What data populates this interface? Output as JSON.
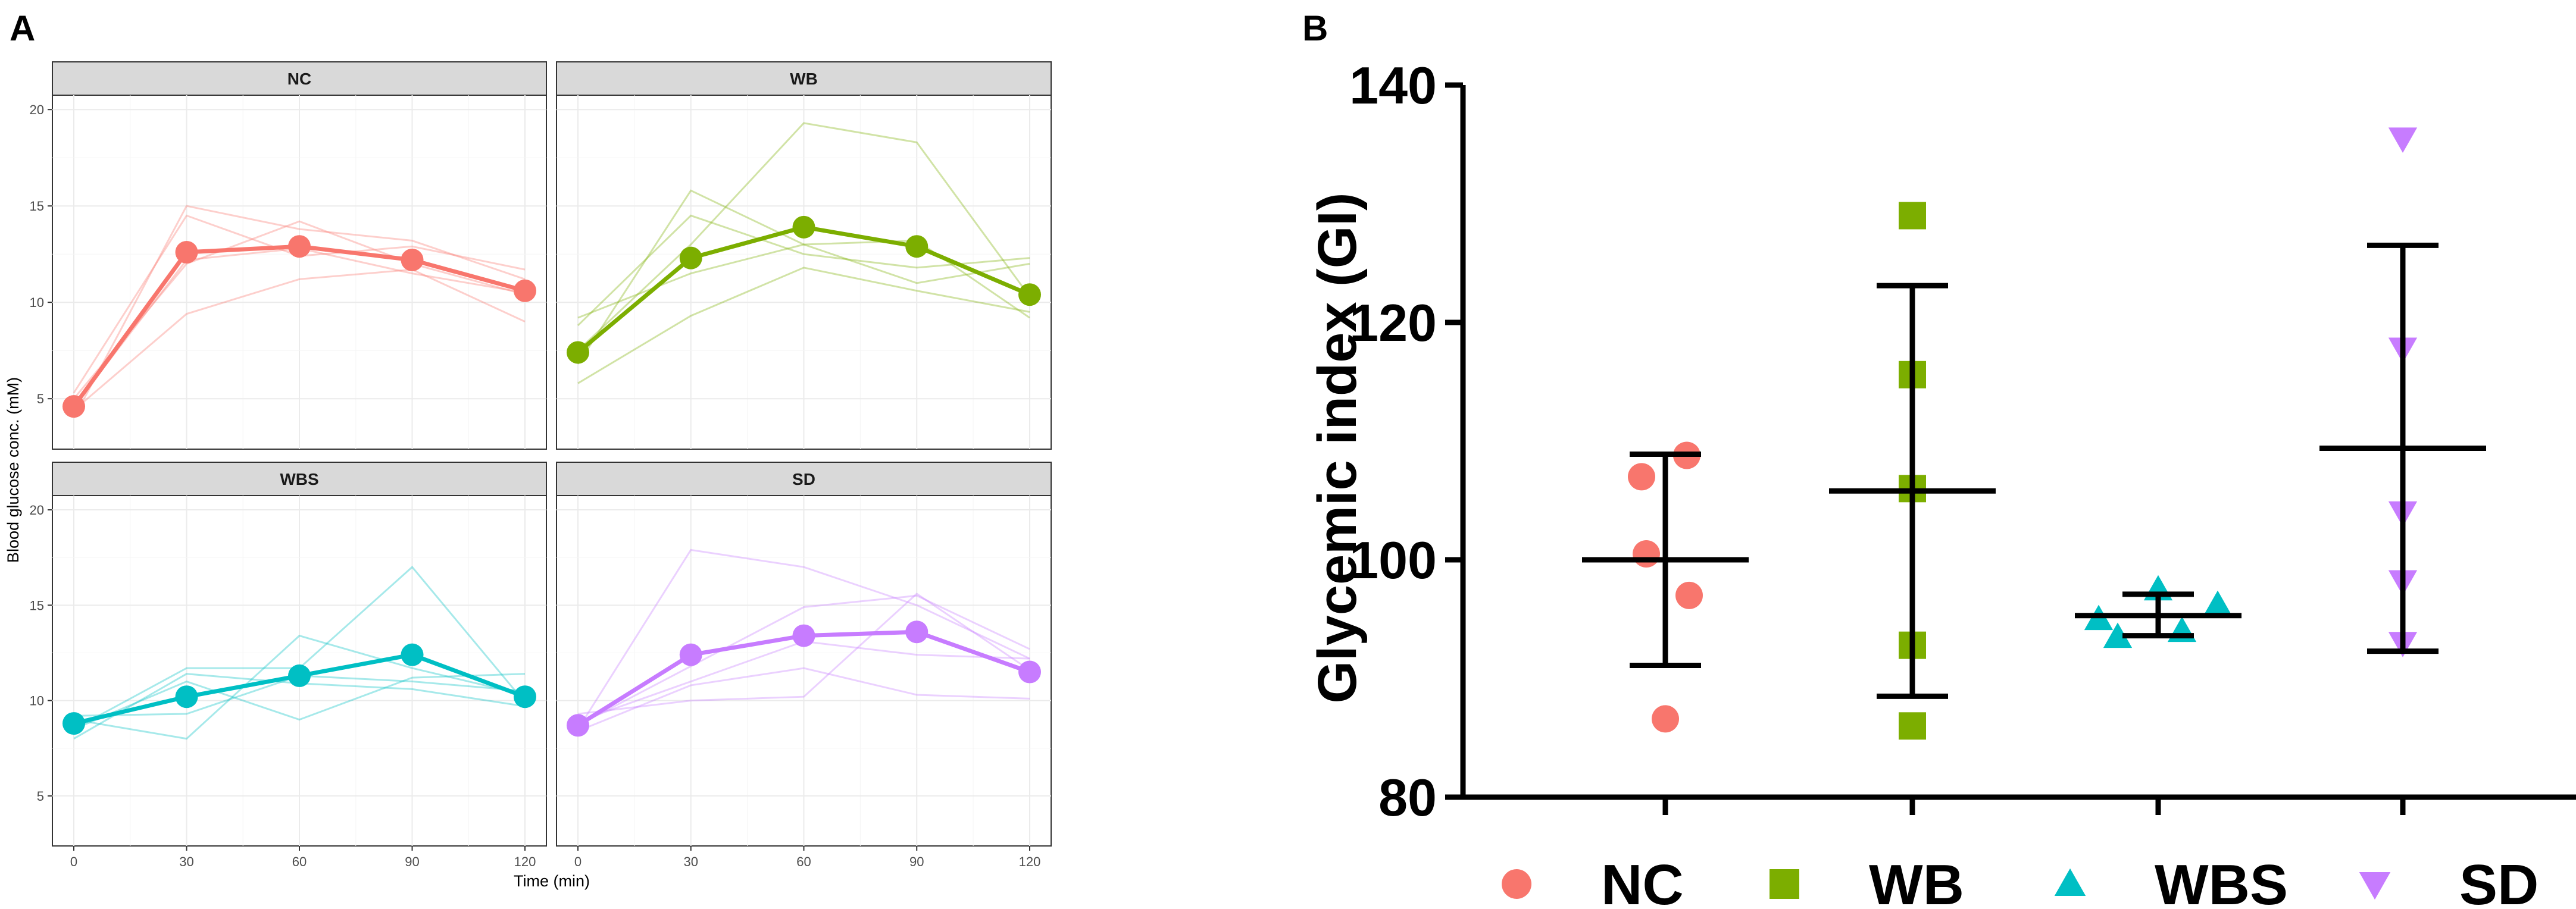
{
  "panels": {
    "a": "A",
    "b": "B"
  },
  "colors": {
    "NC": "#f8766d",
    "WB": "#7cae00",
    "WBS": "#00bfc4",
    "SD": "#c77cff"
  },
  "chart_data": [
    {
      "type": "line",
      "panel": "A",
      "facets": [
        "NC",
        "WB",
        "WBS",
        "SD"
      ],
      "x": [
        0,
        30,
        60,
        90,
        120
      ],
      "xticks": [
        "0",
        "30",
        "60",
        "90",
        "120"
      ],
      "yticks": [
        "5",
        "10",
        "15",
        "20"
      ],
      "xlim": [
        0,
        120
      ],
      "ylim": [
        3,
        20.5
      ],
      "xlabel": "Time (min)",
      "ylabel": "Blood glucose conc. (mM)",
      "grid": true,
      "mean": {
        "NC": [
          4.6,
          12.6,
          12.9,
          12.2,
          10.6
        ],
        "WB": [
          7.4,
          12.3,
          13.9,
          12.9,
          10.4
        ],
        "WBS": [
          8.8,
          10.2,
          11.3,
          12.4,
          10.2
        ],
        "SD": [
          8.7,
          12.4,
          13.4,
          13.6,
          11.5
        ]
      },
      "individuals": {
        "NC": [
          [
            4.0,
            15.0,
            13.8,
            13.2,
            11.2
          ],
          [
            4.6,
            12.2,
            12.8,
            11.5,
            10.5
          ],
          [
            4.4,
            9.4,
            11.2,
            11.7,
            9.0
          ],
          [
            5.3,
            14.5,
            12.4,
            12.9,
            11.7
          ],
          [
            5.0,
            12.0,
            14.2,
            12.0,
            10.4
          ]
        ],
        "WB": [
          [
            8.8,
            14.5,
            12.5,
            11.8,
            12.3
          ],
          [
            6.8,
            15.8,
            13.0,
            13.2,
            9.2
          ],
          [
            5.8,
            9.3,
            11.8,
            10.6,
            9.5
          ],
          [
            9.2,
            11.5,
            13.0,
            11.0,
            12.0
          ],
          [
            7.5,
            13.0,
            19.3,
            18.3,
            10.3
          ]
        ],
        "WBS": [
          [
            8.5,
            11.7,
            11.7,
            17.0,
            9.9
          ],
          [
            9.0,
            8.0,
            13.4,
            11.7,
            10.3
          ],
          [
            8.5,
            11.0,
            9.0,
            11.2,
            11.4
          ],
          [
            9.2,
            9.3,
            11.3,
            11.0,
            10.5
          ],
          [
            8.0,
            11.4,
            10.9,
            10.6,
            9.7
          ]
        ],
        "SD": [
          [
            8.5,
            17.9,
            17.0,
            15.0,
            12.2
          ],
          [
            9.3,
            10.0,
            10.2,
            15.6,
            11.6
          ],
          [
            8.7,
            11.8,
            14.9,
            15.5,
            12.7
          ],
          [
            8.4,
            10.8,
            11.7,
            10.3,
            10.1
          ],
          [
            8.9,
            11.0,
            13.1,
            12.4,
            12.2
          ]
        ]
      }
    },
    {
      "type": "scatter",
      "panel": "B",
      "ylabel": "Glycemic index (GI)",
      "xlabel": "",
      "ylim": [
        80,
        140
      ],
      "yticks": [
        "80",
        "100",
        "120",
        "140"
      ],
      "groups": [
        "NC",
        "WB",
        "WBS",
        "SD"
      ],
      "markers": {
        "NC": "circle",
        "WB": "square",
        "WBS": "triangle-up",
        "SD": "triangle-down"
      },
      "points": {
        "NC": [
          86.6,
          100.5,
          97.0,
          107.0,
          108.8
        ],
        "WB": [
          86.0,
          92.8,
          106.0,
          115.6,
          129.0
        ],
        "WBS": [
          95.0,
          93.5,
          97.5,
          94.0,
          96.2
        ],
        "SD": [
          93.0,
          98.2,
          104.0,
          117.8,
          135.5
        ]
      },
      "mean": {
        "NC": 100.0,
        "WB": 105.8,
        "WBS": 95.3,
        "SD": 109.4
      },
      "error": {
        "NC": [
          91.1,
          108.9
        ],
        "WB": [
          88.5,
          123.1
        ],
        "WBS": [
          93.6,
          97.1
        ],
        "SD": [
          92.3,
          126.5
        ]
      },
      "legend": [
        "NC",
        "WB",
        "WBS",
        "SD"
      ],
      "legend_position": "bottom"
    }
  ]
}
